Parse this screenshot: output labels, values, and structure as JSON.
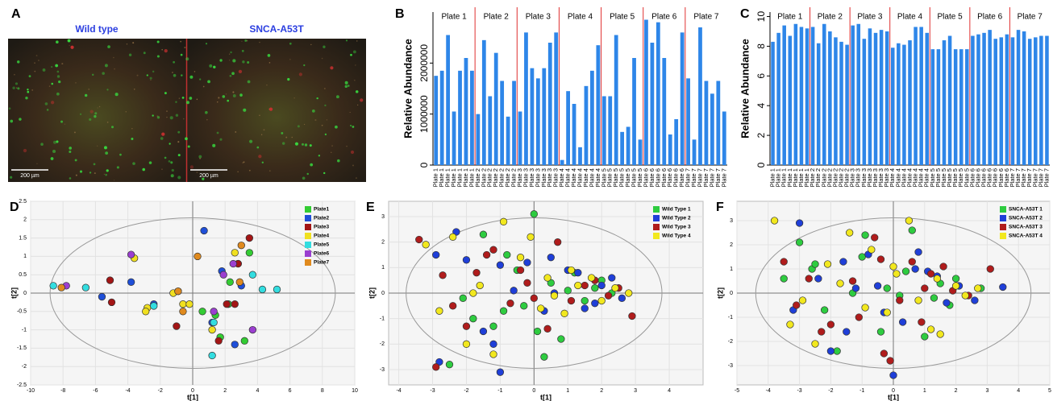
{
  "images": {
    "panel_label": "A",
    "items": [
      {
        "label": "Wild type",
        "scale_bar": "200 µm"
      },
      {
        "label": "SNCA-A53T",
        "scale_bar": "200 µm"
      }
    ]
  },
  "chart_data": [
    {
      "type": "bar",
      "panel_label": "B",
      "y_label": "Relative Abundance",
      "color": "#2e86e8",
      "separator_color": "#e03030",
      "categories": [
        "Plate 1",
        "Plate 1",
        "Plate 1",
        "Plate 1",
        "Plate 1",
        "Plate 1",
        "Plate 1",
        "Plate 2",
        "Plate 2",
        "Plate 2",
        "Plate 2",
        "Plate 2",
        "Plate 2",
        "Plate 2",
        "Plate 3",
        "Plate 3",
        "Plate 3",
        "Plate 3",
        "Plate 3",
        "Plate 3",
        "Plate 3",
        "Plate 4",
        "Plate 4",
        "Plate 4",
        "Plate 4",
        "Plate 4",
        "Plate 4",
        "Plate 4",
        "Plate 5",
        "Plate 5",
        "Plate 5",
        "Plate 5",
        "Plate 5",
        "Plate 5",
        "Plate 5",
        "Plate 6",
        "Plate 6",
        "Plate 6",
        "Plate 6",
        "Plate 6",
        "Plate 6",
        "Plate 6",
        "Plate 7",
        "Plate 7",
        "Plate 7",
        "Plate 7",
        "Plate 7",
        "Plate 7",
        "Plate 7"
      ],
      "values": [
        1750000,
        1850000,
        2550000,
        1050000,
        1850000,
        2100000,
        1850000,
        1000000,
        2450000,
        1350000,
        2200000,
        1650000,
        950000,
        1650000,
        1050000,
        2600000,
        1900000,
        1700000,
        1900000,
        2400000,
        2600000,
        100000,
        1450000,
        1200000,
        350000,
        1550000,
        1850000,
        2350000,
        1350000,
        1350000,
        2550000,
        650000,
        750000,
        2100000,
        500000,
        2850000,
        2400000,
        2800000,
        2100000,
        600000,
        900000,
        2600000,
        1700000,
        500000,
        2700000,
        1650000,
        1400000,
        1650000,
        1050000
      ],
      "ylim": [
        0,
        3000000
      ],
      "yticks": [
        0,
        1000000,
        2000000
      ]
    },
    {
      "type": "bar",
      "panel_label": "C",
      "y_label": "Relative Abundance",
      "color": "#2e86e8",
      "separator_color": "#e03030",
      "categories": [
        "Plate 1",
        "Plate 1",
        "Plate 1",
        "Plate 1",
        "Plate 1",
        "Plate 1",
        "Plate 1",
        "Plate 2",
        "Plate 2",
        "Plate 2",
        "Plate 2",
        "Plate 2",
        "Plate 2",
        "Plate 2",
        "Plate 3",
        "Plate 3",
        "Plate 3",
        "Plate 3",
        "Plate 3",
        "Plate 3",
        "Plate 3",
        "Plate 4",
        "Plate 4",
        "Plate 4",
        "Plate 4",
        "Plate 4",
        "Plate 4",
        "Plate 4",
        "Plate 5",
        "Plate 5",
        "Plate 5",
        "Plate 5",
        "Plate 5",
        "Plate 5",
        "Plate 5",
        "Plate 6",
        "Plate 6",
        "Plate 6",
        "Plate 6",
        "Plate 6",
        "Plate 6",
        "Plate 6",
        "Plate 7",
        "Plate 7",
        "Plate 7",
        "Plate 7",
        "Plate 7",
        "Plate 7",
        "Plate 7"
      ],
      "values": [
        8.3,
        8.9,
        9.4,
        8.7,
        9.5,
        9.3,
        9.2,
        9.3,
        8.2,
        9.5,
        9.0,
        8.6,
        8.3,
        8.1,
        9.4,
        9.5,
        8.5,
        9.2,
        8.9,
        9.1,
        9.0,
        7.9,
        8.2,
        8.1,
        8.4,
        9.3,
        9.3,
        8.9,
        7.8,
        7.8,
        8.4,
        8.7,
        7.8,
        7.8,
        7.8,
        8.7,
        8.8,
        8.9,
        9.1,
        8.5,
        8.6,
        8.8,
        8.6,
        9.1,
        9.0,
        8.5,
        8.6,
        8.7,
        8.7
      ],
      "ylim": [
        0,
        10.3
      ],
      "yticks": [
        0,
        2,
        4,
        6,
        8,
        10
      ]
    },
    {
      "type": "scatter",
      "panel_label": "D",
      "x_label": "t[1]",
      "y_label": "t[2]",
      "grid": true,
      "xlim": [
        -10,
        10
      ],
      "ylim": [
        -2.5,
        2.5
      ],
      "xticks": [
        -10,
        -8,
        -6,
        -4,
        -2,
        0,
        2,
        4,
        6,
        8,
        10
      ],
      "yticks": [
        -2.5,
        -2,
        -1.5,
        -1,
        -0.5,
        0,
        0.5,
        1,
        1.5,
        2,
        2.5
      ],
      "series": [
        {
          "name": "Plate1",
          "color": "#33cc33",
          "x": [
            3.5,
            2.8,
            2.3,
            1.4,
            3.2,
            2.2,
            0.6,
            1.7
          ],
          "y": [
            1.1,
            0.8,
            0.3,
            -0.6,
            -1.3,
            -0.3,
            -0.5,
            -1.2
          ]
        },
        {
          "name": "Plate2",
          "color": "#1f4fd8",
          "x": [
            0.7,
            -3.8,
            -5.6,
            -2.4,
            1.8,
            3.0,
            2.6,
            1.2
          ],
          "y": [
            1.7,
            0.3,
            -0.1,
            -0.3,
            0.6,
            0.2,
            -1.4,
            -0.8
          ]
        },
        {
          "name": "Plate3",
          "color": "#a31515",
          "x": [
            3.5,
            2.8,
            -5.1,
            -5.0,
            -1.0,
            2.1,
            2.6,
            1.6
          ],
          "y": [
            1.5,
            0.8,
            0.35,
            -0.25,
            -0.9,
            -0.3,
            -0.3,
            -1.3
          ]
        },
        {
          "name": "Plate4",
          "color": "#f0e020",
          "x": [
            -3.6,
            -2.8,
            -2.9,
            -1.2,
            -0.6,
            2.6,
            1.2,
            -0.2
          ],
          "y": [
            0.95,
            -0.4,
            -0.5,
            0.0,
            -0.3,
            1.1,
            -1.0,
            -0.3
          ]
        },
        {
          "name": "Plate5",
          "color": "#33dde0",
          "x": [
            -8.6,
            -6.6,
            -2.4,
            -0.9,
            3.7,
            5.2,
            4.3,
            1.3,
            1.2
          ],
          "y": [
            0.2,
            0.15,
            -0.35,
            0.05,
            0.5,
            0.1,
            0.1,
            -0.8,
            -1.7
          ]
        },
        {
          "name": "Plate6",
          "color": "#9b3fd0",
          "x": [
            -7.8,
            -3.8,
            1.9,
            2.5,
            1.3,
            3.7
          ],
          "y": [
            0.2,
            1.05,
            0.5,
            0.8,
            -0.5,
            -1.0
          ]
        },
        {
          "name": "Plate7",
          "color": "#e08a1e",
          "x": [
            -8.1,
            0.3,
            3.0,
            -0.9,
            -0.6,
            2.9
          ],
          "y": [
            0.15,
            1.0,
            1.3,
            0.05,
            -0.5,
            0.3
          ]
        }
      ]
    },
    {
      "type": "scatter",
      "panel_label": "E",
      "x_label": "t[1]",
      "y_label": "t[2]",
      "grid": true,
      "xlim": [
        -4.3,
        5.0
      ],
      "ylim": [
        -3.6,
        3.6
      ],
      "xticks": [
        -4,
        -3,
        -2,
        -1,
        0,
        1,
        2,
        3,
        4
      ],
      "yticks": [
        -3,
        -2,
        -1,
        0,
        1,
        2,
        3
      ],
      "series": [
        {
          "name": "Wild Type 1",
          "color": "#2ecc40",
          "x": [
            -1.5,
            -0.8,
            0,
            0.5,
            1.2,
            1.8,
            -2.1,
            -0.3,
            0.8,
            2.3,
            -1.2,
            -0.5,
            0.3,
            1.5,
            2.0,
            -2.5,
            -1.8,
            -0.9,
            0.1,
            1.0
          ],
          "y": [
            2.3,
            1.5,
            3.1,
            0.4,
            0.8,
            0.2,
            -0.2,
            -0.5,
            -1.8,
            0.0,
            -1.3,
            0.9,
            -2.5,
            -0.3,
            0.5,
            -2.8,
            -1.0,
            -0.7,
            -1.5,
            0.1
          ]
        },
        {
          "name": "Wild Type 2",
          "color": "#1f3fd8",
          "x": [
            -2.9,
            -2.3,
            -1.0,
            -0.2,
            0.5,
            1.3,
            2.0,
            2.6,
            -2.8,
            -1.5,
            -0.6,
            0.3,
            1.0,
            1.8,
            -2.0,
            -1.0,
            0.6,
            2.3,
            1.5,
            -1.2
          ],
          "y": [
            1.5,
            2.4,
            -3.1,
            1.2,
            1.4,
            0.8,
            0.3,
            -0.2,
            -2.7,
            -1.5,
            0.1,
            -0.7,
            0.9,
            -0.4,
            1.3,
            1.1,
            0.0,
            0.6,
            -0.6,
            -2.0
          ]
        },
        {
          "name": "Wild Type 3",
          "color": "#b01c1c",
          "x": [
            -3.4,
            -2.7,
            -1.7,
            -1.2,
            -0.7,
            0.0,
            0.7,
            1.5,
            2.2,
            2.9,
            -2.9,
            -2.0,
            -0.4,
            0.4,
            1.1,
            1.8,
            2.5,
            -2.4,
            -1.4,
            -0.2
          ],
          "y": [
            2.1,
            0.7,
            0.8,
            1.7,
            -0.4,
            -0.2,
            2.0,
            0.3,
            -0.1,
            -0.9,
            -2.9,
            -1.3,
            0.9,
            -1.4,
            -0.3,
            0.5,
            0.2,
            -0.5,
            1.5,
            0.4
          ]
        },
        {
          "name": "Wild Type 4",
          "color": "#f2e81e",
          "x": [
            -3.2,
            -2.4,
            -1.8,
            -0.9,
            -0.1,
            0.6,
            1.3,
            2.0,
            2.8,
            -2.8,
            -1.2,
            0.2,
            0.9,
            1.7,
            2.4,
            -1.6,
            -0.4,
            -2.0,
            0.4,
            1.1
          ],
          "y": [
            1.9,
            2.2,
            0.0,
            2.8,
            2.2,
            -0.1,
            0.3,
            -0.3,
            0.0,
            -0.7,
            -2.4,
            -0.6,
            -0.8,
            0.6,
            0.2,
            0.3,
            1.4,
            -2.0,
            0.6,
            0.9
          ]
        }
      ]
    },
    {
      "type": "scatter",
      "panel_label": "F",
      "x_label": "t[1]",
      "y_label": "t[2]",
      "grid": true,
      "xlim": [
        -5,
        5
      ],
      "ylim": [
        -3.8,
        3.8
      ],
      "xticks": [
        -5,
        -4,
        -3,
        -2,
        -1,
        0,
        1,
        2,
        3,
        4,
        5
      ],
      "yticks": [
        -3,
        -2,
        -1,
        0,
        1,
        2,
        3
      ],
      "series": [
        {
          "name": "SNCA-A53T 1",
          "color": "#2ecc40",
          "x": [
            -3,
            -2.6,
            -1.8,
            -1.0,
            -0.2,
            0.6,
            1.3,
            2.0,
            2.8,
            -3.5,
            -2.2,
            -1.3,
            -0.4,
            0.4,
            1.0,
            1.8,
            -0.9,
            0.2,
            1.5,
            -2.5
          ],
          "y": [
            2.1,
            1.0,
            -2.4,
            1.5,
            0.2,
            2.6,
            -0.2,
            0.6,
            0.2,
            0.6,
            -0.7,
            0.0,
            -1.6,
            0.9,
            -1.8,
            -0.5,
            2.4,
            -0.1,
            0.4,
            1.2
          ]
        },
        {
          "name": "SNCA-A53T 2",
          "color": "#1f3fd8",
          "x": [
            -3.0,
            -2.4,
            -1.6,
            -0.8,
            0.0,
            0.7,
            1.4,
            2.1,
            3.5,
            -3.2,
            -2.0,
            -1.2,
            -0.3,
            0.3,
            1.1,
            1.7,
            2.6,
            -0.5,
            0.8,
            -1.5
          ],
          "y": [
            2.9,
            0.6,
            1.3,
            1.6,
            -3.4,
            1.0,
            0.7,
            0.3,
            0.25,
            -0.7,
            -2.4,
            0.2,
            -0.8,
            -1.2,
            0.9,
            -0.4,
            -0.3,
            0.3,
            1.7,
            -1.6
          ]
        },
        {
          "name": "SNCA-A53T 3",
          "color": "#b01c1c",
          "x": [
            -3.5,
            -2.7,
            -2.0,
            -1.3,
            -0.6,
            -0.1,
            0.6,
            1.2,
            1.9,
            3.1,
            -3.1,
            -2.3,
            -1.1,
            -0.3,
            0.2,
            1.0,
            1.6,
            2.4,
            -0.4,
            0.9
          ],
          "y": [
            1.3,
            0.6,
            -1.3,
            0.5,
            2.3,
            -2.8,
            1.3,
            0.8,
            0.1,
            1.0,
            -0.5,
            -1.6,
            -1.0,
            -2.5,
            -0.3,
            0.2,
            1.1,
            -0.1,
            1.4,
            -1.2
          ]
        },
        {
          "name": "SNCA-A53T 4",
          "color": "#f2e81e",
          "x": [
            -3.8,
            -2.9,
            -2.1,
            -1.4,
            -0.7,
            0.1,
            0.5,
            1.2,
            2.0,
            2.7,
            -3.3,
            -2.5,
            -1.7,
            -0.9,
            0.0,
            0.8,
            1.5,
            2.3,
            -0.2,
            1.4
          ],
          "y": [
            3.0,
            -0.3,
            1.2,
            2.5,
            1.8,
            0.8,
            3.0,
            -1.5,
            0.3,
            0.2,
            -1.3,
            -2.1,
            0.4,
            -0.6,
            1.1,
            -0.3,
            -1.7,
            -0.1,
            -0.8,
            0.6
          ]
        }
      ]
    }
  ]
}
